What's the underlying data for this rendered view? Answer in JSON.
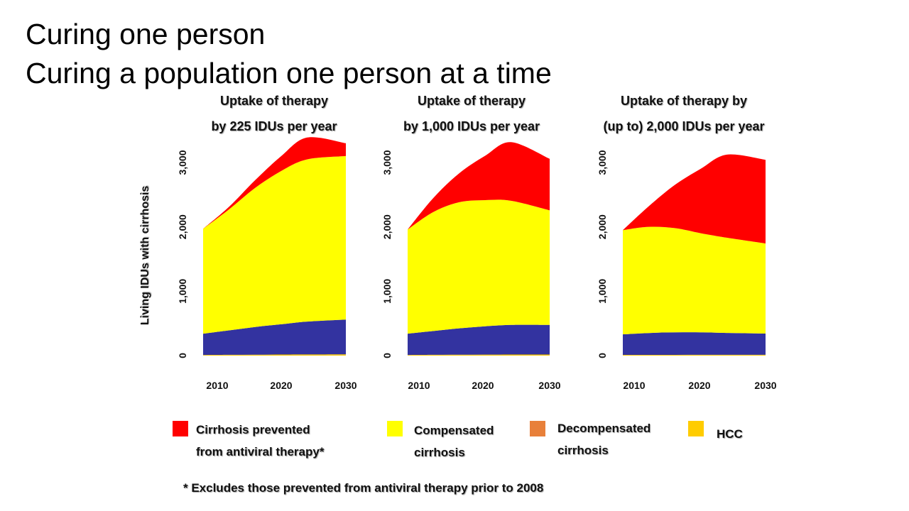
{
  "slide": {
    "title_line1": "Curing one person",
    "title_line2": "Curing a population one person at a time",
    "ylabel": "Living IDUs with cirrhosis",
    "footnote": "* Excludes those prevented from antiviral therapy prior to 2008"
  },
  "colors": {
    "prevented": "#ff0000",
    "compensated": "#ffff00",
    "decompensated": "#3333a0",
    "hcc": "#f5c400",
    "legend_decompensated": "#e8803a",
    "legend_hcc": "#ffcc00"
  },
  "legend": [
    {
      "key": "prevented",
      "line1": "Cirrhosis prevented",
      "line2": "from antiviral therapy*"
    },
    {
      "key": "compensated",
      "line1": "Compensated",
      "line2": "cirrhosis"
    },
    {
      "key": "decompensated",
      "line1": "Decompensated",
      "line2": "cirrhosis"
    },
    {
      "key": "hcc",
      "line1": "HCC",
      "line2": ""
    }
  ],
  "chart_data": [
    {
      "type": "area",
      "subtitle_line1": "Uptake of therapy",
      "subtitle_line2": "by 225 IDUs per year",
      "x": [
        2008,
        2012,
        2016,
        2020,
        2024,
        2030
      ],
      "xticks": [
        "2010",
        "2020",
        "2030"
      ],
      "yticks": [
        "0",
        "1,000",
        "2,000",
        "3,000"
      ],
      "ylim": [
        0,
        3000
      ],
      "series": [
        {
          "key": "hcc",
          "values": [
            10,
            12,
            14,
            16,
            18,
            20
          ]
        },
        {
          "key": "decompensated",
          "values": [
            330,
            380,
            430,
            470,
            510,
            540
          ]
        },
        {
          "key": "compensated",
          "values": [
            1630,
            1880,
            2160,
            2380,
            2520,
            2540
          ]
        },
        {
          "key": "prevented",
          "values": [
            0,
            40,
            120,
            230,
            340,
            200
          ]
        }
      ]
    },
    {
      "type": "area",
      "subtitle_line1": "Uptake of therapy",
      "subtitle_line2": "by 1,000 IDUs per year",
      "x": [
        2008,
        2012,
        2016,
        2020,
        2024,
        2030
      ],
      "xticks": [
        "2010",
        "2020",
        "2030"
      ],
      "yticks": [
        "0",
        "1,000",
        "2,000",
        "3,000"
      ],
      "ylim": [
        0,
        3000
      ],
      "series": [
        {
          "key": "hcc",
          "values": [
            10,
            12,
            14,
            15,
            16,
            17
          ]
        },
        {
          "key": "decompensated",
          "values": [
            330,
            370,
            410,
            440,
            460,
            460
          ]
        },
        {
          "key": "compensated",
          "values": [
            1620,
            1850,
            1960,
            1960,
            1930,
            1780
          ]
        },
        {
          "key": "prevented",
          "values": [
            0,
            220,
            450,
            690,
            910,
            800
          ]
        }
      ]
    },
    {
      "type": "area",
      "subtitle_line1": "Uptake of therapy by",
      "subtitle_line2": "(up to) 2,000 IDUs per year",
      "x": [
        2008,
        2012,
        2016,
        2020,
        2024,
        2030
      ],
      "xticks": [
        "2010",
        "2020",
        "2030"
      ],
      "yticks": [
        "0",
        "1,000",
        "2,000",
        "3,000"
      ],
      "ylim": [
        0,
        3000
      ],
      "series": [
        {
          "key": "hcc",
          "values": [
            10,
            11,
            11,
            12,
            12,
            12
          ]
        },
        {
          "key": "decompensated",
          "values": [
            320,
            340,
            350,
            350,
            340,
            330
          ]
        },
        {
          "key": "compensated",
          "values": [
            1620,
            1650,
            1620,
            1540,
            1480,
            1400
          ]
        },
        {
          "key": "prevented",
          "values": [
            0,
            320,
            670,
            1000,
            1290,
            1300
          ]
        }
      ]
    }
  ]
}
